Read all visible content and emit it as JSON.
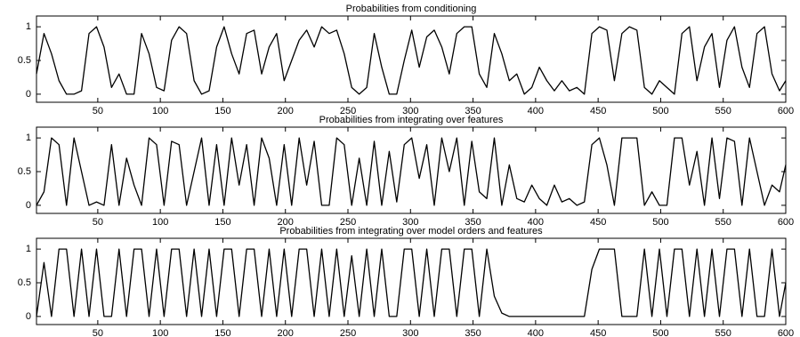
{
  "chart_data": [
    {
      "type": "line",
      "title": "Probabilities from conditioning",
      "x": [
        1,
        7,
        13,
        19,
        25,
        31,
        37,
        43,
        49,
        55,
        61,
        67,
        73,
        79,
        85,
        91,
        97,
        103,
        109,
        115,
        121,
        127,
        133,
        139,
        145,
        151,
        157,
        163,
        169,
        175,
        181,
        187,
        193,
        199,
        205,
        211,
        217,
        223,
        229,
        235,
        241,
        247,
        253,
        259,
        265,
        271,
        277,
        283,
        289,
        295,
        301,
        307,
        313,
        319,
        325,
        331,
        337,
        343,
        349,
        355,
        361,
        367,
        373,
        379,
        385,
        391,
        397,
        403,
        409,
        415,
        421,
        427,
        433,
        439,
        445,
        451,
        457,
        463,
        469,
        475,
        481,
        487,
        493,
        499,
        505,
        511,
        517,
        523,
        529,
        535,
        541,
        547,
        553,
        559,
        565,
        571,
        577,
        583,
        589,
        595,
        600
      ],
      "series": [
        {
          "color": "#000000",
          "values": [
            0.3,
            0.9,
            0.6,
            0.2,
            0.0,
            0.0,
            0.05,
            0.9,
            1.0,
            0.7,
            0.1,
            0.3,
            0.0,
            0.0,
            0.9,
            0.6,
            0.1,
            0.05,
            0.8,
            1.0,
            0.9,
            0.2,
            0.0,
            0.05,
            0.7,
            1.0,
            0.6,
            0.3,
            0.9,
            0.95,
            0.3,
            0.7,
            0.9,
            0.2,
            0.5,
            0.8,
            0.95,
            0.7,
            1.0,
            0.9,
            0.95,
            0.6,
            0.1,
            0.0,
            0.1,
            0.9,
            0.4,
            0.0,
            0.0,
            0.5,
            0.95,
            0.4,
            0.85,
            0.95,
            0.7,
            0.3,
            0.9,
            1.0,
            1.0,
            0.3,
            0.1,
            0.9,
            0.6,
            0.2,
            0.3,
            0.0,
            0.1,
            0.4,
            0.2,
            0.05,
            0.2,
            0.05,
            0.1,
            0.0,
            0.9,
            1.0,
            0.95,
            0.2,
            0.9,
            1.0,
            0.95,
            0.1,
            0.0,
            0.2,
            0.1,
            0.0,
            0.9,
            1.0,
            0.2,
            0.7,
            0.9,
            0.1,
            0.8,
            1.0,
            0.4,
            0.1,
            0.9,
            1.0,
            0.3,
            0.05,
            0.2
          ]
        }
      ],
      "xlim": [
        1,
        600
      ],
      "ylim": [
        -0.12,
        1.16
      ],
      "xticks": [
        50,
        100,
        150,
        200,
        250,
        300,
        350,
        400,
        450,
        500,
        550,
        600
      ],
      "yticks": [
        0,
        0.5,
        1
      ]
    },
    {
      "type": "line",
      "title": "Probabilities from integrating over features",
      "x": [
        1,
        7,
        13,
        19,
        25,
        31,
        37,
        43,
        49,
        55,
        61,
        67,
        73,
        79,
        85,
        91,
        97,
        103,
        109,
        115,
        121,
        127,
        133,
        139,
        145,
        151,
        157,
        163,
        169,
        175,
        181,
        187,
        193,
        199,
        205,
        211,
        217,
        223,
        229,
        235,
        241,
        247,
        253,
        259,
        265,
        271,
        277,
        283,
        289,
        295,
        301,
        307,
        313,
        319,
        325,
        331,
        337,
        343,
        349,
        355,
        361,
        367,
        373,
        379,
        385,
        391,
        397,
        403,
        409,
        415,
        421,
        427,
        433,
        439,
        445,
        451,
        457,
        463,
        469,
        475,
        481,
        487,
        493,
        499,
        505,
        511,
        517,
        523,
        529,
        535,
        541,
        547,
        553,
        559,
        565,
        571,
        577,
        583,
        589,
        595,
        600
      ],
      "series": [
        {
          "color": "#000000",
          "values": [
            0.0,
            0.2,
            1.0,
            0.9,
            0.0,
            1.0,
            0.5,
            0.0,
            0.05,
            0.0,
            0.9,
            0.0,
            0.7,
            0.3,
            0.0,
            1.0,
            0.9,
            0.0,
            0.95,
            0.9,
            0.0,
            0.5,
            1.0,
            0.0,
            0.9,
            0.0,
            1.0,
            0.3,
            0.9,
            0.0,
            1.0,
            0.7,
            0.0,
            0.9,
            0.0,
            1.0,
            0.3,
            0.95,
            0.0,
            0.0,
            1.0,
            0.9,
            0.0,
            0.7,
            0.0,
            0.95,
            0.0,
            0.8,
            0.05,
            0.9,
            1.0,
            0.4,
            0.9,
            0.0,
            1.0,
            0.5,
            1.0,
            0.0,
            0.95,
            0.2,
            0.1,
            1.0,
            0.0,
            0.6,
            0.1,
            0.05,
            0.3,
            0.1,
            0.0,
            0.3,
            0.05,
            0.1,
            0.0,
            0.05,
            0.9,
            1.0,
            0.6,
            0.0,
            1.0,
            1.0,
            1.0,
            0.0,
            0.2,
            0.0,
            0.0,
            1.0,
            1.0,
            0.3,
            0.8,
            0.0,
            1.0,
            0.1,
            1.0,
            0.95,
            0.0,
            1.0,
            0.5,
            0.0,
            0.3,
            0.2,
            0.6
          ]
        }
      ],
      "xlim": [
        1,
        600
      ],
      "ylim": [
        -0.12,
        1.16
      ],
      "xticks": [
        50,
        100,
        150,
        200,
        250,
        300,
        350,
        400,
        450,
        500,
        550,
        600
      ],
      "yticks": [
        0,
        0.5,
        1
      ]
    },
    {
      "type": "line",
      "title": "Probabilities from integrating over model orders and features",
      "x": [
        1,
        7,
        13,
        19,
        25,
        31,
        37,
        43,
        49,
        55,
        61,
        67,
        73,
        79,
        85,
        91,
        97,
        103,
        109,
        115,
        121,
        127,
        133,
        139,
        145,
        151,
        157,
        163,
        169,
        175,
        181,
        187,
        193,
        199,
        205,
        211,
        217,
        223,
        229,
        235,
        241,
        247,
        253,
        259,
        265,
        271,
        277,
        283,
        289,
        295,
        301,
        307,
        313,
        319,
        325,
        331,
        337,
        343,
        349,
        355,
        361,
        367,
        373,
        379,
        385,
        391,
        397,
        403,
        409,
        415,
        421,
        427,
        433,
        439,
        445,
        451,
        457,
        463,
        469,
        475,
        481,
        487,
        493,
        499,
        505,
        511,
        517,
        523,
        529,
        535,
        541,
        547,
        553,
        559,
        565,
        571,
        577,
        583,
        589,
        595,
        600
      ],
      "series": [
        {
          "color": "#000000",
          "values": [
            0.0,
            0.8,
            0.0,
            1.0,
            1.0,
            0.0,
            1.0,
            0.0,
            1.0,
            0.0,
            0.0,
            1.0,
            0.0,
            1.0,
            1.0,
            0.0,
            1.0,
            0.0,
            1.0,
            1.0,
            0.0,
            1.0,
            0.0,
            1.0,
            0.0,
            1.0,
            1.0,
            0.0,
            1.0,
            1.0,
            0.0,
            1.0,
            0.0,
            1.0,
            0.0,
            1.0,
            1.0,
            0.0,
            1.0,
            0.0,
            1.0,
            0.0,
            0.9,
            0.0,
            1.0,
            0.0,
            1.0,
            0.0,
            0.0,
            1.0,
            1.0,
            0.0,
            1.0,
            0.0,
            1.0,
            1.0,
            0.0,
            1.0,
            1.0,
            0.0,
            1.0,
            0.3,
            0.05,
            0.0,
            0.0,
            0.0,
            0.0,
            0.0,
            0.0,
            0.0,
            0.0,
            0.0,
            0.0,
            0.0,
            0.7,
            1.0,
            1.0,
            1.0,
            0.0,
            0.0,
            0.0,
            1.0,
            0.0,
            1.0,
            0.0,
            1.0,
            1.0,
            0.0,
            1.0,
            0.0,
            1.0,
            0.0,
            1.0,
            1.0,
            0.0,
            1.0,
            0.0,
            0.0,
            1.0,
            0.0,
            0.5
          ]
        }
      ],
      "xlim": [
        1,
        600
      ],
      "ylim": [
        -0.12,
        1.16
      ],
      "xticks": [
        50,
        100,
        150,
        200,
        250,
        300,
        350,
        400,
        450,
        500,
        550,
        600
      ],
      "yticks": [
        0,
        0.5,
        1
      ]
    }
  ]
}
